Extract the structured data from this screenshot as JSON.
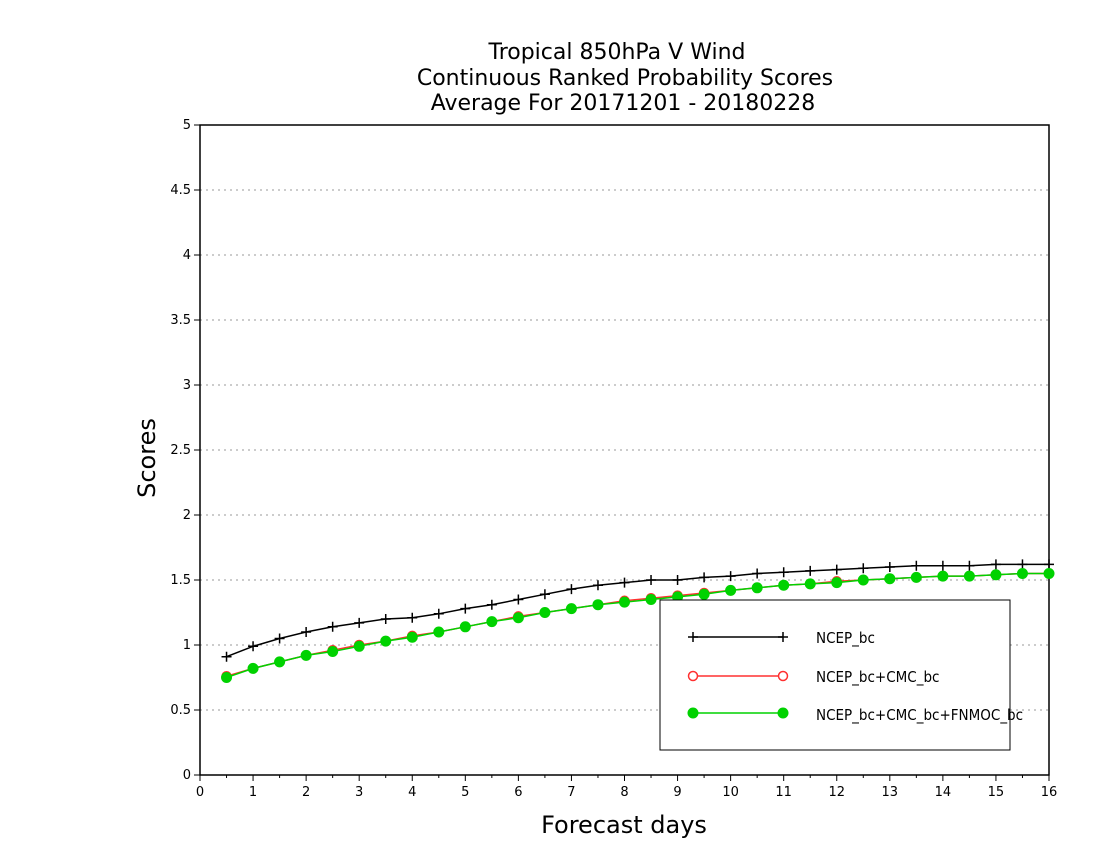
{
  "chart_data": {
    "type": "line",
    "title": [
      "Tropical 850hPa V Wind",
      "Continuous Ranked Probability Scores",
      "Average For 20171201 - 20180228"
    ],
    "xlabel": "Forecast days",
    "ylabel": "Scores",
    "xlim": [
      0,
      16
    ],
    "ylim": [
      0,
      5
    ],
    "xticks": [
      "0",
      "1",
      "2",
      "3",
      "4",
      "5",
      "6",
      "7",
      "8",
      "9",
      "10",
      "11",
      "12",
      "13",
      "14",
      "15",
      "16"
    ],
    "yticks": [
      "0",
      "0.5",
      "1",
      "1.5",
      "2",
      "2.5",
      "3",
      "3.5",
      "4",
      "4.5",
      "5"
    ],
    "grid": "horizontal dotted",
    "legend_position": "lower-right",
    "x": [
      0.5,
      1,
      1.5,
      2,
      2.5,
      3,
      3.5,
      4,
      4.5,
      5,
      5.5,
      6,
      6.5,
      7,
      7.5,
      8,
      8.5,
      9,
      9.5,
      10,
      10.5,
      11,
      11.5,
      12,
      12.5,
      13,
      13.5,
      14,
      14.5,
      15,
      15.5,
      16
    ],
    "series": [
      {
        "name": "NCEP_bc",
        "color": "#000000",
        "marker": "plus",
        "values": [
          0.91,
          0.99,
          1.05,
          1.1,
          1.14,
          1.17,
          1.2,
          1.21,
          1.24,
          1.28,
          1.31,
          1.35,
          1.39,
          1.43,
          1.46,
          1.48,
          1.5,
          1.5,
          1.52,
          1.53,
          1.55,
          1.56,
          1.57,
          1.58,
          1.59,
          1.6,
          1.61,
          1.61,
          1.61,
          1.62,
          1.62,
          1.62
        ]
      },
      {
        "name": "NCEP_bc+CMC_bc",
        "color": "#ff3030",
        "marker": "open-circle",
        "values": [
          0.76,
          0.82,
          0.87,
          0.92,
          0.96,
          1.0,
          1.03,
          1.07,
          1.1,
          1.14,
          1.18,
          1.22,
          1.25,
          1.28,
          1.31,
          1.34,
          1.36,
          1.38,
          1.4,
          1.42,
          1.44,
          1.46,
          1.47,
          1.49,
          1.5,
          1.51,
          1.52,
          1.53,
          1.53,
          1.54,
          1.55,
          1.55
        ]
      },
      {
        "name": "NCEP_bc+CMC_bc+FNMOC_bc",
        "color": "#00d200",
        "marker": "filled-circle",
        "values": [
          0.75,
          0.82,
          0.87,
          0.92,
          0.95,
          0.99,
          1.03,
          1.06,
          1.1,
          1.14,
          1.18,
          1.21,
          1.25,
          1.28,
          1.31,
          1.33,
          1.35,
          1.37,
          1.39,
          1.42,
          1.44,
          1.46,
          1.47,
          1.48,
          1.5,
          1.51,
          1.52,
          1.53,
          1.53,
          1.54,
          1.55,
          1.55
        ]
      }
    ]
  }
}
